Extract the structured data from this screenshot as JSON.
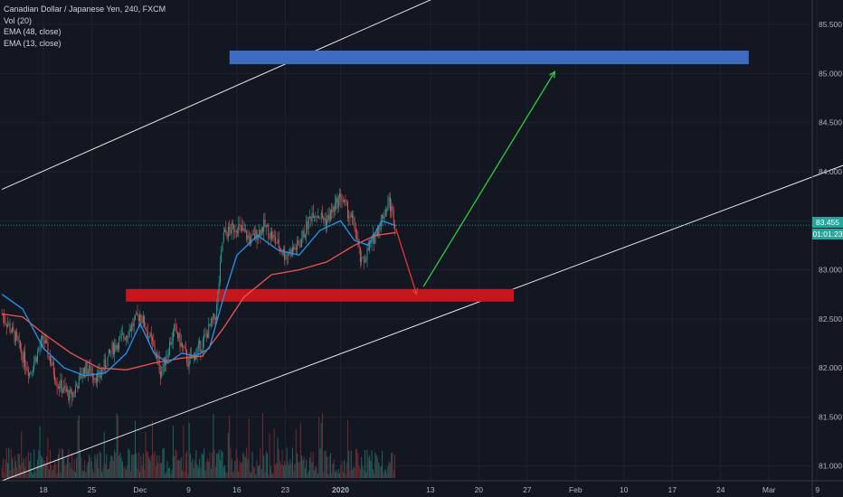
{
  "legend": {
    "title": "Canadian Dollar / Japanese Yen, 240, FXCM",
    "vol": "Vol (20)",
    "ema48": "EMA (48, close)",
    "ema13": "EMA (13, close)"
  },
  "price_labels": {
    "last": "83.455",
    "countdown": "01:01:23"
  },
  "colors": {
    "background": "#131722",
    "up": "#26a69a",
    "down": "#ef5350",
    "ema48": "#ef5350",
    "ema13": "#2196f3",
    "resistance_zone": "#3d6cc1",
    "support_zone": "#c4161c",
    "arrow_up": "#2ecc40",
    "arrow_down": "#e53935",
    "channel": "#e6e6e6"
  },
  "chart_data": {
    "type": "candlestick",
    "y_ticks": [
      "85.500",
      "85.000",
      "84.500",
      "84.000",
      "83.500",
      "83.000",
      "82.500",
      "82.000",
      "81.500",
      "81.000"
    ],
    "ylim": [
      80.85,
      85.75
    ],
    "x_ticks": [
      "18",
      "25",
      "Dec",
      "9",
      "16",
      "23",
      "2020",
      "13",
      "20",
      "27",
      "Feb",
      "10",
      "17",
      "24",
      "Mar",
      "9"
    ],
    "grid": true,
    "last_price": 83.455,
    "price_path": [
      [
        "2019-11-12",
        82.55
      ],
      [
        "2019-11-14",
        82.3
      ],
      [
        "2019-11-16",
        81.95
      ],
      [
        "2019-11-18",
        82.3
      ],
      [
        "2019-11-20",
        81.85
      ],
      [
        "2019-11-22",
        81.7
      ],
      [
        "2019-11-24",
        82.0
      ],
      [
        "2019-11-26",
        81.9
      ],
      [
        "2019-11-28",
        82.2
      ],
      [
        "2019-11-30",
        82.35
      ],
      [
        "2019-12-02",
        82.55
      ],
      [
        "2019-12-04",
        82.2
      ],
      [
        "2019-12-05",
        81.95
      ],
      [
        "2019-12-07",
        82.4
      ],
      [
        "2019-12-09",
        82.05
      ],
      [
        "2019-12-11",
        82.25
      ],
      [
        "2019-12-13",
        82.55
      ],
      [
        "2019-12-14",
        83.35
      ],
      [
        "2019-12-16",
        83.45
      ],
      [
        "2019-12-18",
        83.3
      ],
      [
        "2019-12-20",
        83.45
      ],
      [
        "2019-12-23",
        83.15
      ],
      [
        "2019-12-25",
        83.25
      ],
      [
        "2019-12-27",
        83.6
      ],
      [
        "2019-12-29",
        83.5
      ],
      [
        "2019-12-31",
        83.75
      ],
      [
        "2020-01-02",
        83.45
      ],
      [
        "2020-01-03",
        83.05
      ],
      [
        "2020-01-05",
        83.35
      ],
      [
        "2020-01-07",
        83.7
      ],
      [
        "2020-01-08",
        83.45
      ]
    ],
    "series": [
      {
        "name": "EMA (48, close)",
        "points": [
          [
            "2019-11-12",
            82.55
          ],
          [
            "2019-11-15",
            82.52
          ],
          [
            "2019-11-18",
            82.35
          ],
          [
            "2019-11-22",
            82.15
          ],
          [
            "2019-11-26",
            82.0
          ],
          [
            "2019-11-30",
            81.98
          ],
          [
            "2019-12-04",
            82.05
          ],
          [
            "2019-12-08",
            82.1
          ],
          [
            "2019-12-11",
            82.12
          ],
          [
            "2019-12-14",
            82.4
          ],
          [
            "2019-12-17",
            82.72
          ],
          [
            "2019-12-21",
            82.95
          ],
          [
            "2019-12-25",
            83.0
          ],
          [
            "2019-12-29",
            83.08
          ],
          [
            "2020-01-02",
            83.25
          ],
          [
            "2020-01-05",
            83.35
          ],
          [
            "2020-01-08",
            83.38
          ]
        ]
      },
      {
        "name": "EMA (13, close)",
        "points": [
          [
            "2019-11-12",
            82.75
          ],
          [
            "2019-11-15",
            82.6
          ],
          [
            "2019-11-18",
            82.2
          ],
          [
            "2019-11-21",
            82.0
          ],
          [
            "2019-11-24",
            81.92
          ],
          [
            "2019-11-27",
            81.95
          ],
          [
            "2019-11-30",
            82.15
          ],
          [
            "2019-12-02",
            82.45
          ],
          [
            "2019-12-04",
            82.15
          ],
          [
            "2019-12-06",
            82.05
          ],
          [
            "2019-12-08",
            82.15
          ],
          [
            "2019-12-10",
            82.12
          ],
          [
            "2019-12-12",
            82.2
          ],
          [
            "2019-12-14",
            82.7
          ],
          [
            "2019-12-16",
            83.15
          ],
          [
            "2019-12-19",
            83.35
          ],
          [
            "2019-12-22",
            83.2
          ],
          [
            "2019-12-25",
            83.15
          ],
          [
            "2019-12-28",
            83.4
          ],
          [
            "2019-12-31",
            83.5
          ],
          [
            "2020-01-02",
            83.3
          ],
          [
            "2020-01-04",
            83.25
          ],
          [
            "2020-01-06",
            83.5
          ],
          [
            "2020-01-08",
            83.45
          ]
        ]
      }
    ],
    "annotations": {
      "resistance_zone": {
        "x": [
          "2019-12-15",
          "2020-02-28"
        ],
        "y": [
          85.1,
          85.23
        ]
      },
      "support_zone": {
        "x": [
          "2019-11-30",
          "2020-01-25"
        ],
        "y": [
          82.68,
          82.8
        ]
      },
      "arrow_down": {
        "from": [
          "2020-01-08",
          83.42
        ],
        "to": [
          "2020-01-11",
          82.75
        ]
      },
      "arrow_up": {
        "from": [
          "2020-01-12",
          82.83
        ],
        "to": [
          "2020-01-31",
          85.02
        ]
      },
      "channel_upper": {
        "from": [
          "2019-11-12",
          83.82
        ],
        "to": [
          "2020-01-21",
          86.0
        ]
      },
      "channel_lower": {
        "from": [
          "2019-11-12",
          80.85
        ],
        "to": [
          "2020-03-19",
          84.23
        ]
      }
    }
  }
}
